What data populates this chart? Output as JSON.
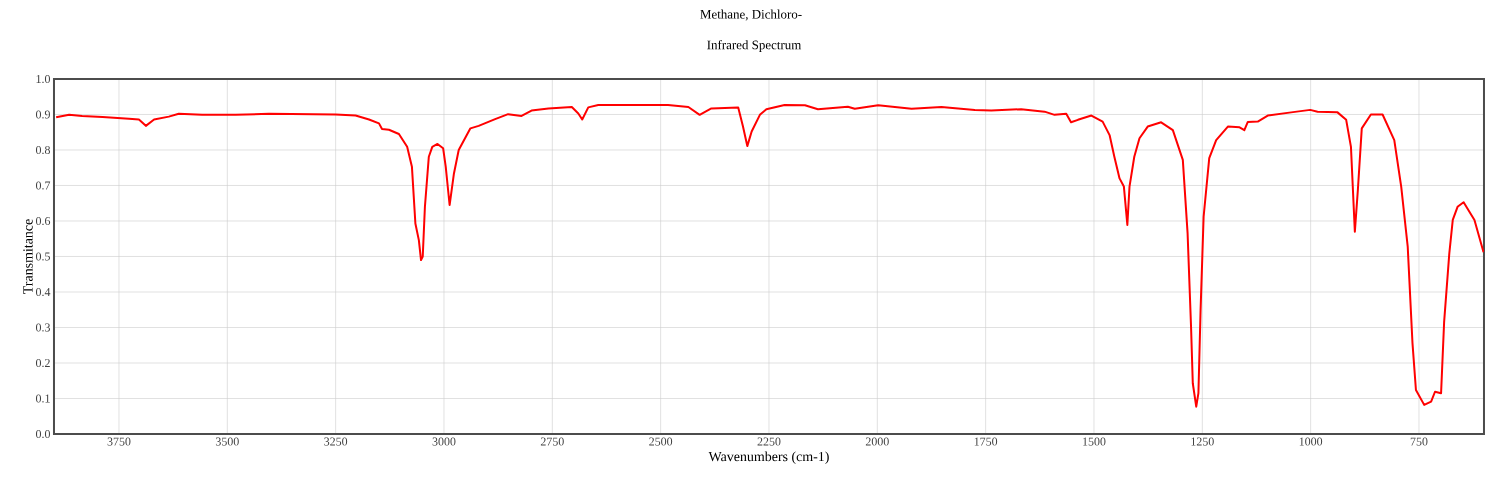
{
  "chart_data": {
    "type": "line",
    "title": "Methane, Dichloro-",
    "subtitle": "Infrared Spectrum",
    "xlabel": "Wavenumbers (cm-1)",
    "ylabel": "Transmitance",
    "xlim": [
      3900,
      600
    ],
    "ylim": [
      0,
      1
    ],
    "xticks": [
      3750,
      3500,
      3250,
      3000,
      2750,
      2500,
      2250,
      2000,
      1750,
      1500,
      1250,
      1000,
      750
    ],
    "yticks": [
      {
        "value": 0,
        "label": "0.0"
      },
      0.1,
      0.2,
      0.3,
      0.4,
      0.5,
      0.6,
      0.7,
      0.8,
      0.9,
      {
        "value": 1,
        "label": "1.0"
      }
    ],
    "grid": true,
    "legend": false,
    "marker": "none",
    "line_style": "solid",
    "series": [
      {
        "color": "#ff0000",
        "x": [
          3895,
          3865,
          3835,
          3788,
          3727,
          3704,
          3688,
          3669,
          3635,
          3612,
          3558,
          3481,
          3404,
          3250,
          3204,
          3173,
          3150,
          3143,
          3127,
          3104,
          3085,
          3074,
          3066,
          3058,
          3053,
          3049,
          3044,
          3035,
          3027,
          3015,
          3002,
          2996,
          2987,
          2977,
          2966,
          2939,
          2920,
          2882,
          2852,
          2821,
          2798,
          2759,
          2705,
          2690,
          2681,
          2667,
          2644,
          2483,
          2436,
          2410,
          2383,
          2321,
          2310,
          2300,
          2290,
          2271,
          2256,
          2214,
          2167,
          2137,
          2068,
          2052,
          1998,
          1921,
          1852,
          1775,
          1737,
          1668,
          1614,
          1591,
          1564,
          1553,
          1537,
          1506,
          1480,
          1464,
          1453,
          1441,
          1431,
          1423,
          1418,
          1407,
          1395,
          1376,
          1345,
          1318,
          1295,
          1284,
          1276,
          1272,
          1264,
          1259,
          1254,
          1247,
          1234,
          1218,
          1191,
          1164,
          1153,
          1145,
          1122,
          1099,
          1045,
          1001,
          984,
          938,
          918,
          907,
          898,
          891,
          882,
          861,
          834,
          807,
          791,
          776,
          765,
          757,
          738,
          722,
          713,
          699,
          692,
          680,
          672,
          661,
          647,
          622,
          601
        ],
        "values": [
          0.892,
          0.899,
          0.896,
          0.893,
          0.888,
          0.886,
          0.868,
          0.886,
          0.894,
          0.902,
          0.899,
          0.899,
          0.902,
          0.9,
          0.897,
          0.886,
          0.875,
          0.859,
          0.857,
          0.845,
          0.809,
          0.753,
          0.593,
          0.546,
          0.49,
          0.5,
          0.64,
          0.781,
          0.809,
          0.817,
          0.805,
          0.753,
          0.645,
          0.734,
          0.8,
          0.861,
          0.868,
          0.887,
          0.901,
          0.896,
          0.911,
          0.917,
          0.921,
          0.903,
          0.886,
          0.92,
          0.927,
          0.927,
          0.921,
          0.899,
          0.917,
          0.92,
          0.866,
          0.811,
          0.852,
          0.899,
          0.915,
          0.927,
          0.926,
          0.915,
          0.922,
          0.916,
          0.926,
          0.916,
          0.921,
          0.913,
          0.911,
          0.915,
          0.908,
          0.899,
          0.902,
          0.878,
          0.885,
          0.897,
          0.88,
          0.842,
          0.781,
          0.72,
          0.697,
          0.589,
          0.697,
          0.781,
          0.833,
          0.866,
          0.878,
          0.856,
          0.772,
          0.566,
          0.302,
          0.143,
          0.077,
          0.115,
          0.349,
          0.612,
          0.777,
          0.828,
          0.866,
          0.864,
          0.856,
          0.879,
          0.88,
          0.897,
          0.906,
          0.913,
          0.908,
          0.906,
          0.885,
          0.809,
          0.57,
          0.688,
          0.861,
          0.9,
          0.9,
          0.828,
          0.697,
          0.528,
          0.256,
          0.124,
          0.082,
          0.091,
          0.119,
          0.115,
          0.315,
          0.509,
          0.603,
          0.64,
          0.653,
          0.603,
          0.512
        ]
      }
    ]
  }
}
